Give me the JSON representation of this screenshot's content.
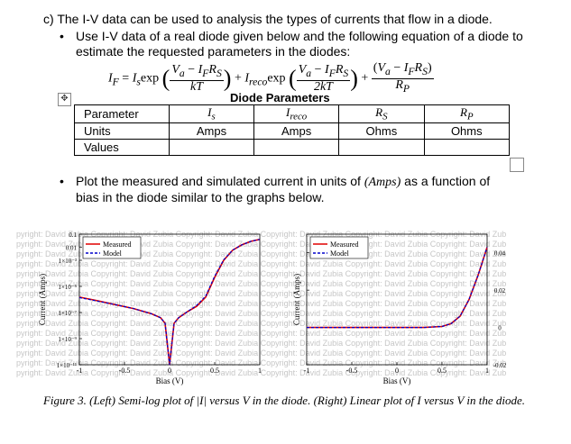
{
  "question": {
    "label": "c)",
    "text": "The I-V data can be used to analysis the types of currents that flow in a diode."
  },
  "bullet1": "Use I-V data of a real diode given below and the following equation of a diode to estimate the requested parameters in the diodes:",
  "equation": {
    "lhs": "I",
    "lhs_sub": "F",
    "eq": "=",
    "is": "I",
    "is_sub": "s",
    "exp": "exp",
    "num1": "V",
    "num1_sub": "a",
    "minus": " − ",
    "irs": "I",
    "irs_sub": "F",
    "rs": "R",
    "rs_sub": "S",
    "den1": "kT",
    "plus": "+",
    "ireco": "I",
    "ireco_sub": "reco",
    "den2": "2kT",
    "rp": "R",
    "rp_sub": "P"
  },
  "table": {
    "title": "Diode Parameters",
    "headers": [
      "Parameter",
      "Is",
      "Ireco",
      "RS",
      "RP"
    ],
    "units": [
      "Units",
      "Amps",
      "Amps",
      "Ohms",
      "Ohms"
    ],
    "values": [
      "Values",
      "",
      "",
      "",
      ""
    ]
  },
  "bullet2": {
    "before": "Plot the measured and simulated current in units of ",
    "units": "(Amps)",
    "after": " as a function of bias in the diode similar to the graphs below."
  },
  "watermark": "pyright: David Zubia Copyright: David Zubia Copyright: David Zubia Copyright: David Zubia Copyright: David Zubia Copyright: David Zub",
  "chart_data": [
    {
      "type": "line",
      "scale_y": "log",
      "ylabel": "Current (Amps)",
      "xlabel": "Bias (V)",
      "xlim": [
        -1,
        1
      ],
      "x_ticks": [
        "-1",
        "-0.5",
        "0",
        "0.5",
        "1"
      ],
      "ylim": [
        1e-11,
        0.1
      ],
      "y_ticks": [
        "1×10⁻¹¹",
        "1×10⁻⁹",
        "1×10⁻⁷",
        "1×10⁻⁵",
        "1×10⁻³",
        "0.01",
        "0.1"
      ],
      "legend_position": "top-left",
      "series": [
        {
          "name": "Measured",
          "color": "#e00000",
          "x": [
            -1.0,
            -0.8,
            -0.6,
            -0.4,
            -0.2,
            -0.1,
            -0.05,
            0.0,
            0.05,
            0.1,
            0.2,
            0.3,
            0.4,
            0.5,
            0.6,
            0.7,
            0.8,
            0.9,
            1.0
          ],
          "y": [
            1.5e-06,
            8e-07,
            4e-07,
            2e-07,
            8e-08,
            4e-08,
            1.5e-08,
            1e-11,
            1.5e-08,
            4e-08,
            1.2e-07,
            3e-07,
            1.5e-06,
            5e-05,
            0.001,
            0.006,
            0.015,
            0.028,
            0.04
          ]
        },
        {
          "name": "Model",
          "color": "#0000cc",
          "x": [
            -1.0,
            -0.8,
            -0.6,
            -0.4,
            -0.2,
            -0.1,
            -0.05,
            0.0,
            0.05,
            0.1,
            0.2,
            0.3,
            0.4,
            0.5,
            0.6,
            0.7,
            0.8,
            0.9,
            1.0
          ],
          "y": [
            1.4e-06,
            7.5e-07,
            4e-07,
            2e-07,
            8e-08,
            4e-08,
            1.5e-08,
            1e-11,
            1.5e-08,
            4e-08,
            1.2e-07,
            3.5e-07,
            1.8e-06,
            6e-05,
            0.0011,
            0.006,
            0.015,
            0.028,
            0.04
          ]
        }
      ]
    },
    {
      "type": "line",
      "ylabel": "Current (Amps)",
      "xlabel": "Bias (V)",
      "xlim": [
        -1,
        1
      ],
      "x_ticks": [
        "-1",
        "-0.5",
        "0",
        "0.5",
        "1"
      ],
      "ylim": [
        -0.02,
        0.05
      ],
      "y_ticks": [
        "-0.02",
        "0",
        "0.02",
        "0.04"
      ],
      "legend_position": "top-left",
      "series": [
        {
          "name": "Measured",
          "color": "#e00000",
          "x": [
            -1.0,
            -0.5,
            0.0,
            0.3,
            0.5,
            0.6,
            0.7,
            0.8,
            0.9,
            1.0
          ],
          "y": [
            0,
            0,
            0,
            0,
            0.0005,
            0.002,
            0.006,
            0.015,
            0.028,
            0.043
          ]
        },
        {
          "name": "Model",
          "color": "#0000cc",
          "x": [
            -1.0,
            -0.5,
            0.0,
            0.3,
            0.5,
            0.6,
            0.7,
            0.8,
            0.9,
            1.0
          ],
          "y": [
            0,
            0,
            0,
            0,
            0.0005,
            0.002,
            0.006,
            0.015,
            0.028,
            0.043
          ]
        }
      ]
    }
  ],
  "caption": "Figure 3. (Left) Semi-log plot of |I| versus V in the diode. (Right) Linear plot of I versus V in the diode."
}
